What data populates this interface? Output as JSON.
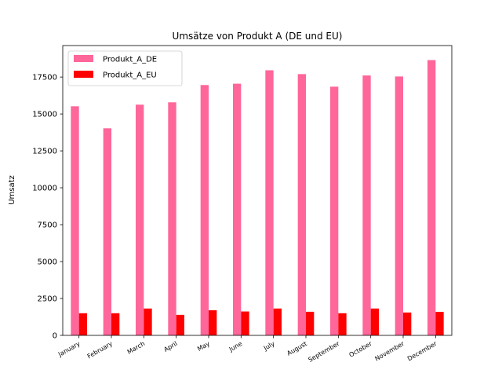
{
  "chart_data": {
    "type": "bar",
    "title": "Umsätze von Produkt A (DE und EU)",
    "xlabel": "",
    "ylabel": "Umsatz",
    "categories": [
      "January",
      "February",
      "March",
      "April",
      "May",
      "June",
      "July",
      "August",
      "September",
      "October",
      "November",
      "December"
    ],
    "series": [
      {
        "name": "Produkt_A_DE",
        "color": "#ff6699",
        "values": [
          15520,
          14030,
          15630,
          15790,
          16960,
          17050,
          17960,
          17700,
          16850,
          17610,
          17540,
          18650
        ]
      },
      {
        "name": "Produkt_A_EU",
        "color": "#ff0000",
        "values": [
          1500,
          1500,
          1820,
          1390,
          1700,
          1620,
          1820,
          1600,
          1500,
          1820,
          1550,
          1590
        ]
      }
    ],
    "ylim": [
      0,
      19635
    ],
    "yticks": [
      0,
      2500,
      5000,
      7500,
      10000,
      12500,
      15000,
      17500
    ],
    "legend": "top-left",
    "grid": false
  }
}
